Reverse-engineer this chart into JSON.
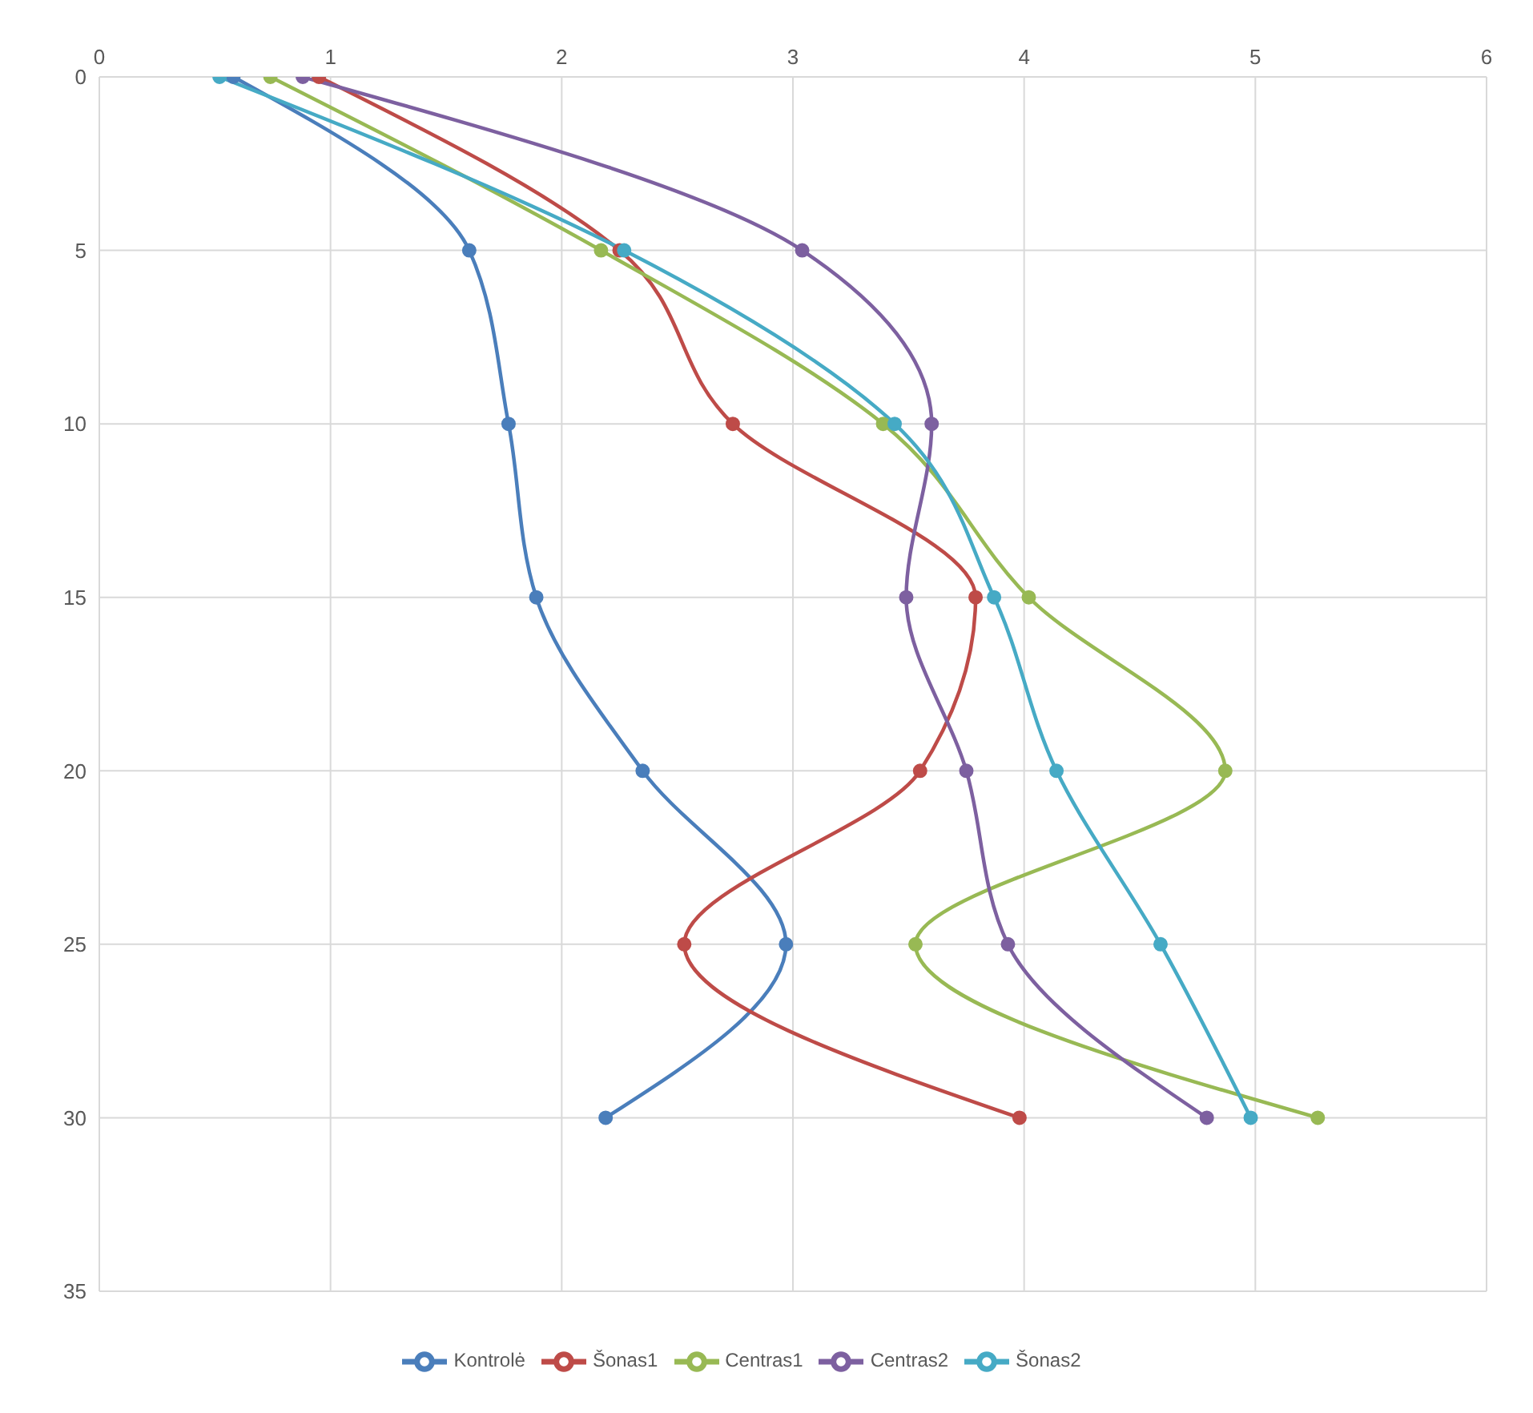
{
  "chart_data": {
    "type": "line",
    "xlim": [
      0,
      6
    ],
    "xticks": [
      0,
      1,
      2,
      3,
      4,
      5,
      6
    ],
    "ylim": [
      35,
      0
    ],
    "yticks": [
      0,
      5,
      10,
      15,
      20,
      25,
      30,
      35
    ],
    "grid": true,
    "legend": "bottom",
    "marker": "circle",
    "line_style": "solid",
    "series": [
      {
        "name": "Kontrolė",
        "color": "#4a7ebb",
        "x": [
          0.58,
          1.6,
          1.77,
          1.89,
          2.35,
          2.97,
          2.19
        ],
        "values": [
          0,
          5,
          10,
          15,
          20,
          25,
          30
        ]
      },
      {
        "name": "Šonas1",
        "color": "#be4b48",
        "x": [
          0.95,
          2.25,
          2.74,
          3.79,
          3.55,
          2.53,
          3.98
        ],
        "values": [
          0,
          5,
          10,
          15,
          20,
          25,
          30
        ]
      },
      {
        "name": "Centras1",
        "color": "#98b954",
        "x": [
          0.74,
          2.17,
          3.39,
          4.02,
          4.87,
          3.53,
          5.27
        ],
        "values": [
          0,
          5,
          10,
          15,
          20,
          25,
          30
        ]
      },
      {
        "name": "Centras2",
        "color": "#7d60a0",
        "x": [
          0.88,
          3.04,
          3.6,
          3.49,
          3.75,
          3.93,
          4.79
        ],
        "values": [
          0,
          5,
          10,
          15,
          20,
          25,
          30
        ]
      },
      {
        "name": "Šonas2",
        "color": "#46aac5",
        "x": [
          0.52,
          2.27,
          3.44,
          3.87,
          4.14,
          4.59,
          4.98
        ],
        "values": [
          0,
          5,
          10,
          15,
          20,
          25,
          30
        ]
      }
    ]
  }
}
